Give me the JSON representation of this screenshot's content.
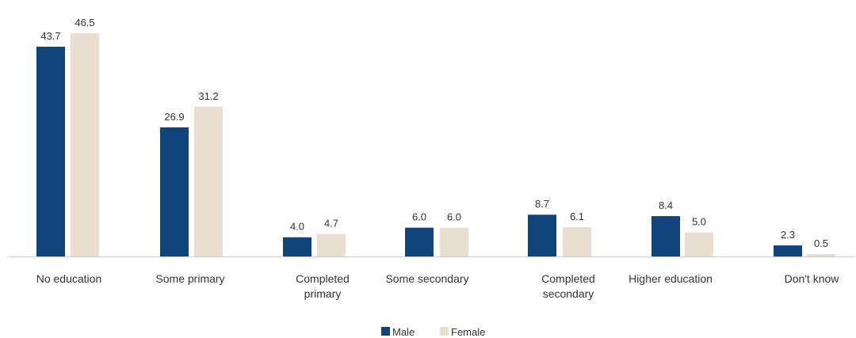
{
  "chart_data": {
    "type": "bar",
    "categories": [
      [
        "No education"
      ],
      [
        "Some primary"
      ],
      [
        "Completed",
        "primary"
      ],
      [
        "Some secondary"
      ],
      [
        "Completed",
        "secondary"
      ],
      [
        "Higher education"
      ],
      [
        "Don't know"
      ]
    ],
    "series": [
      {
        "name": "Male",
        "color": "#12447c",
        "values": [
          43.7,
          26.9,
          4.0,
          6.0,
          8.7,
          8.4,
          2.3
        ],
        "labels": [
          "43.7",
          "26.9",
          "4.0",
          "6.0",
          "8.7",
          "8.4",
          "2.3"
        ]
      },
      {
        "name": "Female",
        "color": "#e8dfd1",
        "values": [
          46.5,
          31.2,
          4.7,
          6.0,
          6.1,
          5.0,
          0.5
        ],
        "labels": [
          "46.5",
          "31.2",
          "4.7",
          "6.0",
          "6.1",
          "5.0",
          "0.5"
        ]
      }
    ],
    "ylim": [
      0,
      46.5
    ],
    "grid": false,
    "legend_position": "bottom-center"
  }
}
